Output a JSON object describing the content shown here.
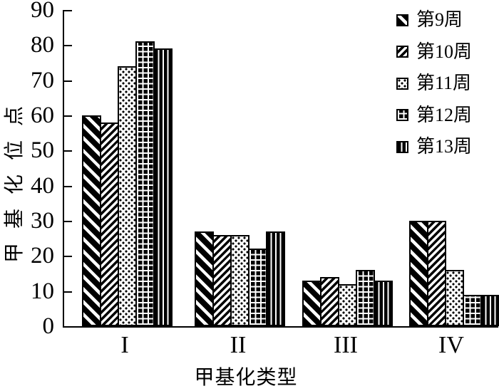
{
  "figure": {
    "background_color": "#ffffff",
    "ink_color": "#000000",
    "style": "black-and-white hatched bar chart"
  },
  "chart_data": {
    "type": "bar",
    "title": "",
    "xlabel": "甲基化类型",
    "ylabel": "甲基化位点",
    "ylim": [
      0,
      90
    ],
    "y_ticks": [
      0,
      10,
      20,
      30,
      40,
      50,
      60,
      70,
      80,
      90
    ],
    "grid": false,
    "legend_position": "top-right",
    "categories": [
      "I",
      "II",
      "III",
      "IV"
    ],
    "series": [
      {
        "name": "第9周",
        "pattern": "thick-backslash-stripes",
        "values": [
          60,
          27,
          13,
          30
        ]
      },
      {
        "name": "第10周",
        "pattern": "thin-slash-stripes",
        "values": [
          58,
          26,
          14,
          30
        ]
      },
      {
        "name": "第11周",
        "pattern": "dots",
        "values": [
          74,
          26,
          12,
          16
        ]
      },
      {
        "name": "第12周",
        "pattern": "grid",
        "values": [
          81,
          22,
          16,
          9
        ]
      },
      {
        "name": "第13周",
        "pattern": "vertical-stripes",
        "values": [
          79,
          27,
          13,
          9
        ]
      }
    ]
  }
}
